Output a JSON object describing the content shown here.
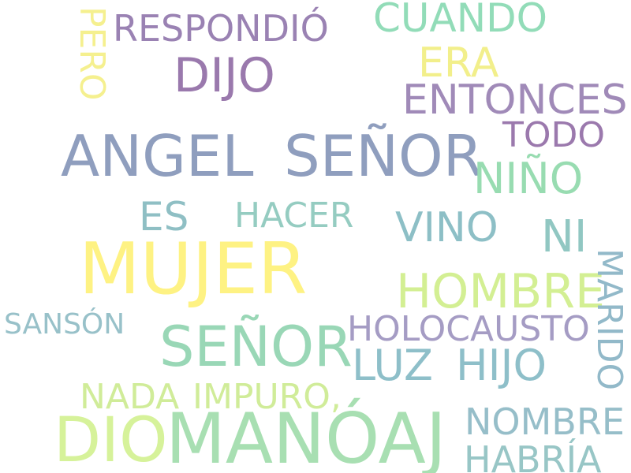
{
  "words": [
    {
      "text": "MUJER",
      "color": "#fef283"
    },
    {
      "text": "MANÓAJ",
      "color": "#a8dfb2"
    },
    {
      "text": "ANGEL",
      "color": "#8f9ebe"
    },
    {
      "text": "SEÑOR",
      "color": "#8f9ebe"
    },
    {
      "text": "SEÑOR",
      "color": "#99d7b6"
    },
    {
      "text": "DIO",
      "color": "#d6f29a"
    },
    {
      "text": "HOMBRE",
      "color": "#d3ef93"
    },
    {
      "text": "DIJO",
      "color": "#9a79ad"
    },
    {
      "text": "ERA",
      "color": "#f2ef8b"
    },
    {
      "text": "NIÑO",
      "color": "#98dcb1"
    },
    {
      "text": "ENTONCES",
      "color": "#a08ab8"
    },
    {
      "text": "CUANDO",
      "color": "#92dcb8"
    },
    {
      "text": "RESPONDIÓ",
      "color": "#9a82b3"
    },
    {
      "text": "VINO",
      "color": "#8dbfc6"
    },
    {
      "text": "LUZ",
      "color": "#8ebfc9"
    },
    {
      "text": "HIJO",
      "color": "#8ebfc9"
    },
    {
      "text": "ES",
      "color": "#8fbfc4"
    },
    {
      "text": "HACER",
      "color": "#95ccc1"
    },
    {
      "text": "NI",
      "color": "#91c7c2"
    },
    {
      "text": "TODO",
      "color": "#9b79ad"
    },
    {
      "text": "HOLOCAUSTO",
      "color": "#a59cc4"
    },
    {
      "text": "NADA",
      "color": "#d0ec99"
    },
    {
      "text": "IMPURO,",
      "color": "#d0ec99"
    },
    {
      "text": "NOMBRE",
      "color": "#96bec9"
    },
    {
      "text": "HABRÍA",
      "color": "#98c6c6"
    },
    {
      "text": "SANSÓN",
      "color": "#98c1c9"
    },
    {
      "text": "PERO",
      "color": "#f5f08f"
    },
    {
      "text": "MARIDO",
      "color": "#92b9c9"
    }
  ]
}
